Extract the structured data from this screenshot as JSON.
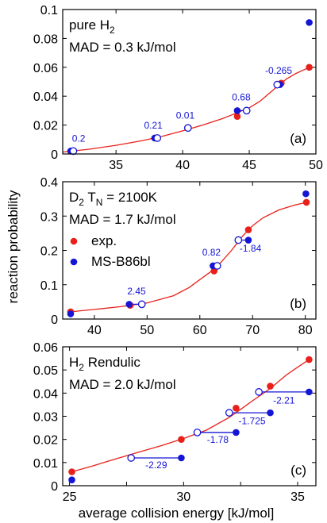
{
  "figure": {
    "ylabel": "reaction probability",
    "xlabel": "average collision energy [kJ/mol]",
    "legend": {
      "exp_label": "exp.",
      "theory_label": "MS-B86bl"
    },
    "colors": {
      "exp": "#e8201a",
      "theory": "#1515d6",
      "fit": "#e8201a",
      "shift": "#1515d6"
    }
  },
  "chart_data": [
    {
      "type": "scatter",
      "panel_label": "(a)",
      "title_main": "pure H",
      "title_sub": "2",
      "title_suffix": "",
      "mad": "MAD = 0.3 kJ/mol",
      "xlim": [
        31,
        50
      ],
      "ylim": [
        0,
        0.1
      ],
      "xticks": [
        35,
        40,
        45,
        50
      ],
      "xtick_labels": [
        "35",
        "40",
        "45",
        "50"
      ],
      "yticks": [
        0,
        0.02,
        0.04,
        0.06,
        0.08,
        0.1
      ],
      "ytick_labels": [
        "0",
        "0.02",
        "0.04",
        "0.06",
        "0.08",
        "0.1"
      ],
      "exp": [
        [
          31.7,
          0.002
        ],
        [
          38.1,
          0.011
        ],
        [
          40.4,
          0.018
        ],
        [
          44.1,
          0.026
        ],
        [
          47.4,
          0.049
        ],
        [
          49.5,
          0.06
        ]
      ],
      "theory": [
        [
          31.6,
          0.002
        ],
        [
          37.9,
          0.011
        ],
        [
          40.4,
          0.018
        ],
        [
          44.1,
          0.03
        ],
        [
          47.3,
          0.048
        ],
        [
          49.5,
          0.091
        ]
      ],
      "shifted": [
        [
          31.8,
          0.002,
          31.6
        ],
        [
          38.1,
          0.011,
          37.9
        ],
        [
          40.4,
          0.018,
          40.4
        ],
        [
          44.8,
          0.03,
          44.1
        ],
        [
          47.1,
          0.048,
          47.3
        ]
      ],
      "shift_labels": [
        {
          "text": "0.2",
          "x": 32.2,
          "y": 0.0085
        },
        {
          "text": "0.21",
          "x": 37.8,
          "y": 0.0175
        },
        {
          "text": "0.01",
          "x": 40.2,
          "y": 0.0245
        },
        {
          "text": "0.68",
          "x": 44.4,
          "y": 0.037
        },
        {
          "text": "-0.265",
          "x": 47.2,
          "y": 0.0555
        }
      ],
      "fit": [
        [
          31.0,
          0.0013
        ],
        [
          33.0,
          0.0033
        ],
        [
          35.0,
          0.006
        ],
        [
          37.0,
          0.0093
        ],
        [
          38.5,
          0.0123
        ],
        [
          40.0,
          0.016
        ],
        [
          41.5,
          0.02
        ],
        [
          43.0,
          0.0245
        ],
        [
          44.0,
          0.0282
        ],
        [
          45.0,
          0.032
        ],
        [
          45.8,
          0.0365
        ],
        [
          46.5,
          0.042
        ],
        [
          47.2,
          0.0475
        ],
        [
          47.8,
          0.052
        ],
        [
          48.5,
          0.0557
        ],
        [
          49.5,
          0.06
        ]
      ],
      "show_legend": false
    },
    {
      "type": "scatter",
      "panel_label": "(b)",
      "title_main": "D",
      "title_sub": "2",
      "title_suffix": " T",
      "title_suffix_sub": "N",
      "title_tail": " = 2100K",
      "mad": "MAD = 1.7 kJ/mol",
      "xlim": [
        34,
        82
      ],
      "ylim": [
        0,
        0.4
      ],
      "xticks": [
        40,
        50,
        60,
        70,
        80
      ],
      "xtick_labels": [
        "40",
        "50",
        "60",
        "70",
        "80"
      ],
      "yticks": [
        0,
        0.1,
        0.2,
        0.3,
        0.4
      ],
      "ytick_labels": [
        "0",
        "0.1",
        "0.2",
        "0.3",
        "0.4"
      ],
      "exp": [
        [
          35.5,
          0.021
        ],
        [
          46.8,
          0.04
        ],
        [
          62.7,
          0.14
        ],
        [
          69.2,
          0.26
        ],
        [
          80.2,
          0.34
        ]
      ],
      "theory": [
        [
          35.5,
          0.015
        ],
        [
          46.6,
          0.043
        ],
        [
          62.5,
          0.155
        ],
        [
          69.2,
          0.23
        ],
        [
          80.1,
          0.365
        ]
      ],
      "shifted": [
        [
          49.0,
          0.043,
          46.6
        ],
        [
          63.3,
          0.155,
          62.5
        ],
        [
          67.3,
          0.23,
          69.2
        ]
      ],
      "shift_labels": [
        {
          "text": "2.45",
          "x": 48.0,
          "y": 0.072
        },
        {
          "text": "0.82",
          "x": 62.2,
          "y": 0.185
        },
        {
          "text": "-1.84",
          "x": 69.6,
          "y": 0.196
        }
      ],
      "fit": [
        [
          35.5,
          0.021
        ],
        [
          40.0,
          0.028
        ],
        [
          45.0,
          0.036
        ],
        [
          50.0,
          0.047
        ],
        [
          55.0,
          0.068
        ],
        [
          58.0,
          0.092
        ],
        [
          60.0,
          0.115
        ],
        [
          62.0,
          0.137
        ],
        [
          64.0,
          0.165
        ],
        [
          66.0,
          0.2
        ],
        [
          68.0,
          0.24
        ],
        [
          70.0,
          0.272
        ],
        [
          72.0,
          0.295
        ],
        [
          75.0,
          0.318
        ],
        [
          78.0,
          0.332
        ],
        [
          80.2,
          0.34
        ]
      ],
      "show_legend": true
    },
    {
      "type": "scatter",
      "panel_label": "(c)",
      "title_main": "H",
      "title_sub": "2",
      "title_suffix": " Rendulic",
      "mad": "MAD = 2.0 kJ/mol",
      "xlim": [
        24.7,
        35.8
      ],
      "ylim": [
        0,
        0.06
      ],
      "xticks": [
        25,
        27.5,
        30,
        32.5,
        35
      ],
      "xtick_labels": [
        "25",
        "",
        "30",
        "",
        "35"
      ],
      "yticks": [
        0,
        0.01,
        0.02,
        0.03,
        0.04,
        0.05,
        0.06
      ],
      "ytick_labels": [
        "0",
        "0.01",
        "0.02",
        "0.03",
        "0.04",
        "0.05",
        "0.06"
      ],
      "exp": [
        [
          25.1,
          0.006
        ],
        [
          29.9,
          0.02
        ],
        [
          32.3,
          0.0335
        ],
        [
          33.8,
          0.043
        ],
        [
          35.5,
          0.0545
        ]
      ],
      "theory": [
        [
          25.1,
          0.0025
        ],
        [
          29.9,
          0.012
        ],
        [
          32.3,
          0.023
        ],
        [
          33.8,
          0.0315
        ],
        [
          35.5,
          0.0405
        ]
      ],
      "shifted": [
        [
          27.7,
          0.012,
          29.9
        ],
        [
          30.6,
          0.023,
          32.3
        ],
        [
          32.0,
          0.0315,
          33.8
        ],
        [
          33.3,
          0.0405,
          35.5
        ]
      ],
      "shift_labels": [
        {
          "text": "-2.29",
          "x": 28.8,
          "y": 0.0075
        },
        {
          "text": "-1.78",
          "x": 31.5,
          "y": 0.0185
        },
        {
          "text": "-1.725",
          "x": 33.0,
          "y": 0.0265
        },
        {
          "text": "-2.21",
          "x": 34.4,
          "y": 0.0355
        }
      ],
      "fit": [
        [
          25.1,
          0.006
        ],
        [
          26.0,
          0.0085
        ],
        [
          27.0,
          0.0115
        ],
        [
          28.0,
          0.0144
        ],
        [
          29.0,
          0.0172
        ],
        [
          30.0,
          0.0204
        ],
        [
          31.0,
          0.024
        ],
        [
          32.0,
          0.0295
        ],
        [
          32.5,
          0.033
        ],
        [
          33.0,
          0.0365
        ],
        [
          33.8,
          0.042
        ],
        [
          34.5,
          0.0478
        ],
        [
          35.0,
          0.0512
        ],
        [
          35.5,
          0.0545
        ]
      ],
      "show_legend": false
    }
  ]
}
